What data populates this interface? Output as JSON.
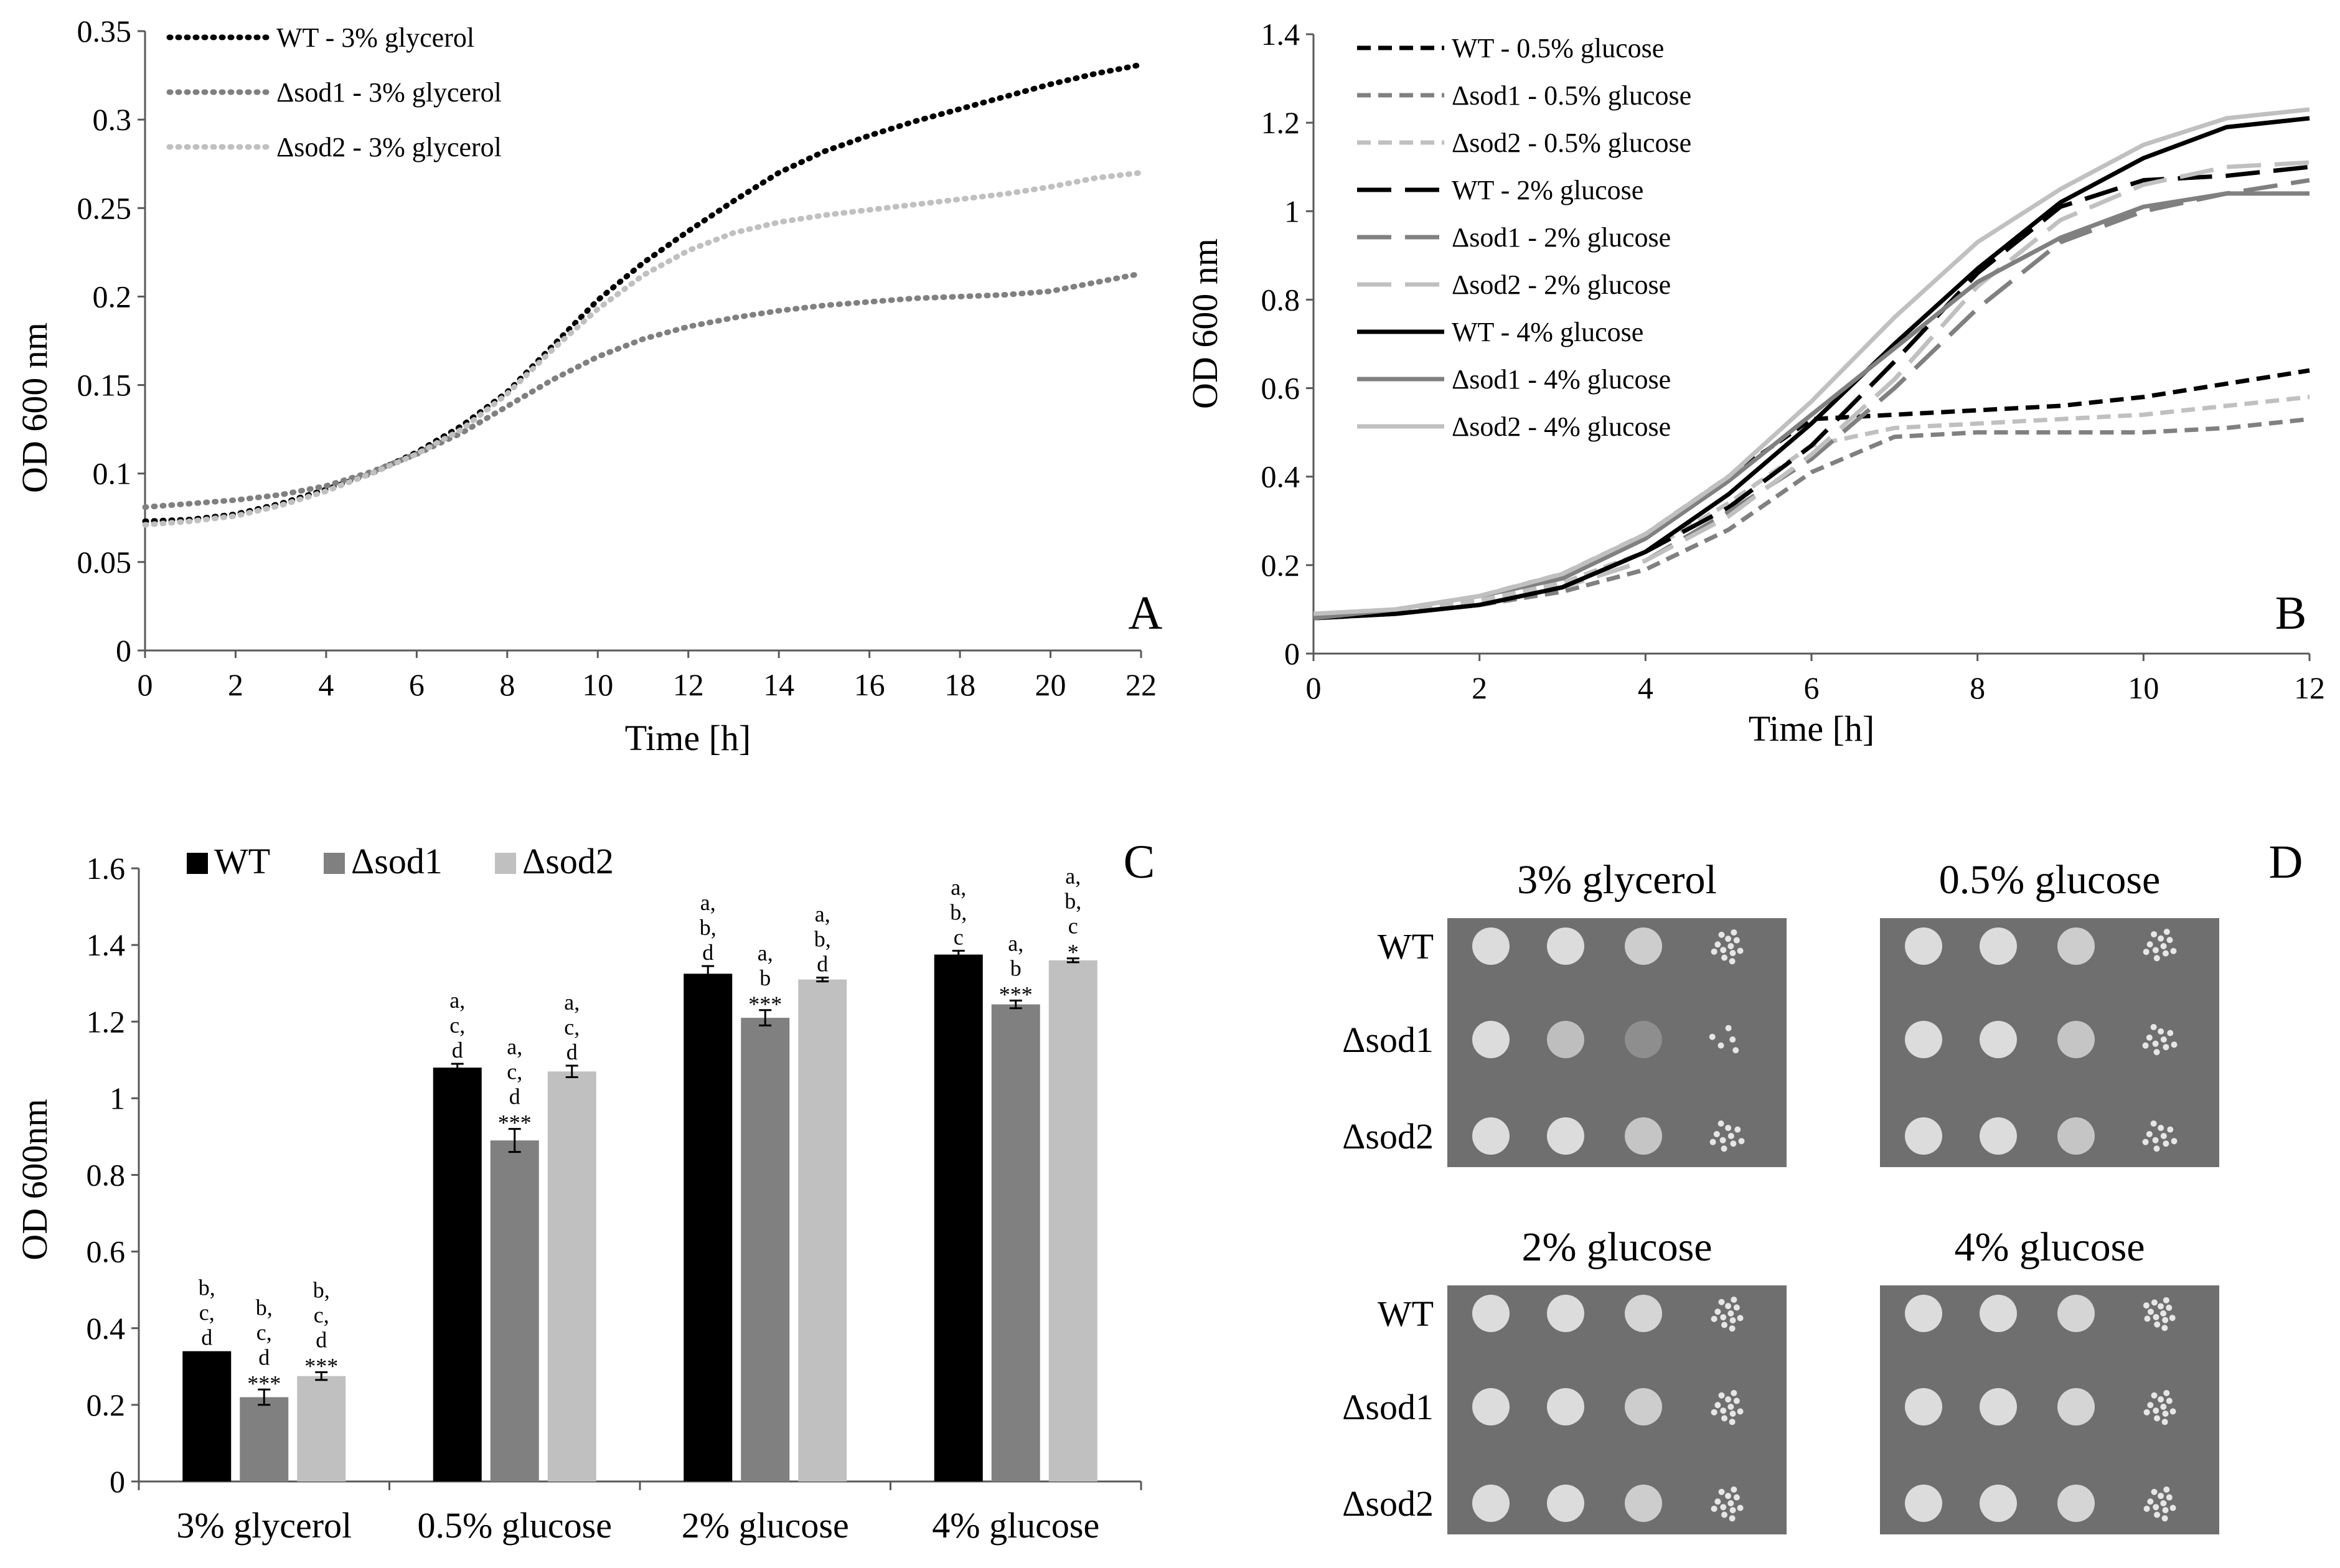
{
  "colors": {
    "black": "#000000",
    "dark_gray": "#808080",
    "light_gray": "#C0C0C0",
    "plate_bg": "#6f6f6f",
    "axis": "#595959"
  },
  "chart_data": [
    {
      "panel": "A",
      "type": "line",
      "xlabel": "Time [h]",
      "ylabel": "OD 600 nm",
      "xlim": [
        0,
        22
      ],
      "ylim": [
        0,
        0.35
      ],
      "xticks": [
        "0",
        "2",
        "4",
        "6",
        "8",
        "10",
        "12",
        "14",
        "16",
        "18",
        "20",
        "22"
      ],
      "yticks": [
        "0",
        "0.05",
        "0.1",
        "0.15",
        "0.2",
        "0.25",
        "0.3",
        "0.35"
      ],
      "legend_position": "top-left",
      "series": [
        {
          "name": "WT - 3% glycerol",
          "color": "#000000",
          "dash": "dot",
          "x": [
            0,
            1,
            2,
            3,
            4,
            5,
            6,
            7,
            8,
            9,
            10,
            11,
            12,
            13,
            14,
            15,
            16,
            17,
            18,
            19,
            20,
            21,
            22
          ],
          "y": [
            0.073,
            0.074,
            0.077,
            0.083,
            0.091,
            0.1,
            0.112,
            0.127,
            0.146,
            0.172,
            0.198,
            0.219,
            0.237,
            0.254,
            0.27,
            0.282,
            0.291,
            0.299,
            0.306,
            0.313,
            0.32,
            0.326,
            0.331
          ]
        },
        {
          "name": "Δsod1 - 3% glycerol",
          "color": "#808080",
          "dash": "dot",
          "x": [
            0,
            1,
            2,
            3,
            4,
            5,
            6,
            7,
            8,
            9,
            10,
            11,
            12,
            13,
            14,
            15,
            16,
            17,
            18,
            19,
            20,
            21,
            22
          ],
          "y": [
            0.081,
            0.083,
            0.085,
            0.088,
            0.093,
            0.101,
            0.111,
            0.123,
            0.138,
            0.153,
            0.166,
            0.176,
            0.183,
            0.188,
            0.192,
            0.195,
            0.197,
            0.199,
            0.2,
            0.201,
            0.203,
            0.208,
            0.213
          ]
        },
        {
          "name": "Δsod2 - 3% glycerol",
          "color": "#C0C0C0",
          "dash": "dot",
          "x": [
            0,
            1,
            2,
            3,
            4,
            5,
            6,
            7,
            8,
            9,
            10,
            11,
            12,
            13,
            14,
            15,
            16,
            17,
            18,
            19,
            20,
            21,
            22
          ],
          "y": [
            0.071,
            0.073,
            0.076,
            0.082,
            0.09,
            0.1,
            0.111,
            0.125,
            0.145,
            0.17,
            0.193,
            0.212,
            0.226,
            0.236,
            0.242,
            0.246,
            0.249,
            0.252,
            0.255,
            0.258,
            0.262,
            0.267,
            0.27
          ]
        }
      ],
      "panel_letter": "A"
    },
    {
      "panel": "B",
      "type": "line",
      "xlabel": "Time [h]",
      "ylabel": "OD 600 nm",
      "xlim": [
        0,
        12
      ],
      "ylim": [
        0,
        1.4
      ],
      "xticks": [
        "0",
        "2",
        "4",
        "6",
        "8",
        "10",
        "12"
      ],
      "yticks": [
        "0",
        "0.2",
        "0.4",
        "0.6",
        "0.8",
        "1",
        "1.2",
        "1.4"
      ],
      "legend_position": "top-left",
      "series": [
        {
          "name": "WT - 0.5% glucose",
          "color": "#000000",
          "dash": "short",
          "x": [
            0,
            1,
            2,
            3,
            4,
            5,
            6,
            7,
            8,
            9,
            10,
            11,
            12
          ],
          "y": [
            0.08,
            0.1,
            0.13,
            0.18,
            0.27,
            0.4,
            0.53,
            0.54,
            0.55,
            0.56,
            0.58,
            0.61,
            0.64
          ]
        },
        {
          "name": "Δsod1 - 0.5% glucose",
          "color": "#808080",
          "dash": "short",
          "x": [
            0,
            1,
            2,
            3,
            4,
            5,
            6,
            7,
            8,
            9,
            10,
            11,
            12
          ],
          "y": [
            0.08,
            0.09,
            0.11,
            0.14,
            0.19,
            0.28,
            0.41,
            0.49,
            0.5,
            0.5,
            0.5,
            0.51,
            0.53
          ]
        },
        {
          "name": "Δsod2 - 0.5% glucose",
          "color": "#C0C0C0",
          "dash": "short",
          "x": [
            0,
            1,
            2,
            3,
            4,
            5,
            6,
            7,
            8,
            9,
            10,
            11,
            12
          ],
          "y": [
            0.08,
            0.09,
            0.12,
            0.16,
            0.23,
            0.34,
            0.47,
            0.51,
            0.52,
            0.53,
            0.54,
            0.56,
            0.58
          ]
        },
        {
          "name": "WT - 2% glucose",
          "color": "#000000",
          "dash": "long",
          "x": [
            0,
            1,
            2,
            3,
            4,
            5,
            6,
            7,
            8,
            9,
            10,
            11,
            12
          ],
          "y": [
            0.08,
            0.09,
            0.11,
            0.15,
            0.23,
            0.33,
            0.47,
            0.66,
            0.86,
            1.01,
            1.07,
            1.08,
            1.1
          ]
        },
        {
          "name": "Δsod1 - 2% glucose",
          "color": "#808080",
          "dash": "long",
          "x": [
            0,
            1,
            2,
            3,
            4,
            5,
            6,
            7,
            8,
            9,
            10,
            11,
            12
          ],
          "y": [
            0.08,
            0.09,
            0.11,
            0.15,
            0.21,
            0.32,
            0.44,
            0.6,
            0.78,
            0.93,
            1.0,
            1.04,
            1.07
          ]
        },
        {
          "name": "Δsod2 - 2% glucose",
          "color": "#C0C0C0",
          "dash": "long",
          "x": [
            0,
            1,
            2,
            3,
            4,
            5,
            6,
            7,
            8,
            9,
            10,
            11,
            12
          ],
          "y": [
            0.08,
            0.09,
            0.11,
            0.15,
            0.21,
            0.31,
            0.45,
            0.62,
            0.83,
            0.98,
            1.06,
            1.1,
            1.11
          ]
        },
        {
          "name": "WT - 4% glucose",
          "color": "#000000",
          "dash": "solid",
          "x": [
            0,
            1,
            2,
            3,
            4,
            5,
            6,
            7,
            8,
            9,
            10,
            11,
            12
          ],
          "y": [
            0.08,
            0.09,
            0.11,
            0.15,
            0.23,
            0.36,
            0.52,
            0.7,
            0.87,
            1.02,
            1.12,
            1.19,
            1.21
          ]
        },
        {
          "name": "Δsod1 - 4% glucose",
          "color": "#808080",
          "dash": "solid",
          "x": [
            0,
            1,
            2,
            3,
            4,
            5,
            6,
            7,
            8,
            9,
            10,
            11,
            12
          ],
          "y": [
            0.08,
            0.1,
            0.13,
            0.17,
            0.26,
            0.39,
            0.54,
            0.69,
            0.84,
            0.94,
            1.01,
            1.04,
            1.04
          ]
        },
        {
          "name": "Δsod2 - 4% glucose",
          "color": "#C0C0C0",
          "dash": "solid",
          "x": [
            0,
            1,
            2,
            3,
            4,
            5,
            6,
            7,
            8,
            9,
            10,
            11,
            12
          ],
          "y": [
            0.09,
            0.1,
            0.13,
            0.18,
            0.27,
            0.4,
            0.57,
            0.76,
            0.93,
            1.05,
            1.15,
            1.21,
            1.23
          ]
        }
      ],
      "panel_letter": "B"
    },
    {
      "panel": "C",
      "type": "bar",
      "ylabel": "OD 600nm",
      "ylim": [
        0,
        1.6
      ],
      "yticks": [
        "0",
        "0.2",
        "0.4",
        "0.6",
        "0.8",
        "1",
        "1.2",
        "1.4",
        "1.6"
      ],
      "categories": [
        "3% glycerol",
        "0.5% glucose",
        "2% glucose",
        "4% glucose"
      ],
      "legend_position": "top-left",
      "series": [
        {
          "name": "WT",
          "color": "#000000",
          "values": [
            0.34,
            1.08,
            1.325,
            1.375
          ],
          "errors": [
            0.0,
            0.01,
            0.02,
            0.01
          ],
          "labels": [
            [
              "b,",
              "c,",
              "d"
            ],
            [
              "a,",
              "c,",
              "d"
            ],
            [
              "a,",
              "b,",
              "d"
            ],
            [
              "a,",
              "b,",
              "c"
            ]
          ],
          "stars": [
            "",
            "",
            "",
            ""
          ]
        },
        {
          "name": "Δsod1",
          "color": "#808080",
          "values": [
            0.22,
            0.89,
            1.21,
            1.245
          ],
          "errors": [
            0.02,
            0.03,
            0.02,
            0.01
          ],
          "labels": [
            [
              "b,",
              "c,",
              "d"
            ],
            [
              "a,",
              "c,",
              "d"
            ],
            [
              "a,",
              "b"
            ],
            [
              "a,",
              "b"
            ]
          ],
          "stars": [
            "***",
            "***",
            "***",
            "***"
          ]
        },
        {
          "name": "Δsod2",
          "color": "#C0C0C0",
          "values": [
            0.275,
            1.07,
            1.31,
            1.36
          ],
          "errors": [
            0.01,
            0.015,
            0.005,
            0.005
          ],
          "labels": [
            [
              "b,",
              "c,",
              "d"
            ],
            [
              "a,",
              "c,",
              "d"
            ],
            [
              "a,",
              "b,",
              "d"
            ],
            [
              "a,",
              "b,",
              "c"
            ]
          ],
          "stars": [
            "***",
            "",
            "",
            "*"
          ]
        }
      ],
      "panel_letter": "C"
    }
  ],
  "spot_panel": {
    "letter": "D",
    "row_labels": [
      "WT",
      "Δsod1",
      "Δsod2"
    ],
    "plates": [
      {
        "title": "3% glycerol",
        "growth": [
          [
            1,
            1,
            0.9,
            0.6
          ],
          [
            1,
            0.8,
            0.4,
            0.1
          ],
          [
            1,
            1,
            0.85,
            0.4
          ]
        ]
      },
      {
        "title": "0.5% glucose",
        "growth": [
          [
            1,
            1,
            0.9,
            0.5
          ],
          [
            1,
            1,
            0.85,
            0.45
          ],
          [
            1,
            1,
            0.85,
            0.4
          ]
        ]
      },
      {
        "title": "2% glucose",
        "growth": [
          [
            1,
            1,
            0.95,
            0.6
          ],
          [
            1,
            1,
            0.9,
            0.55
          ],
          [
            1,
            1,
            0.9,
            0.55
          ]
        ]
      },
      {
        "title": "4% glucose",
        "growth": [
          [
            1,
            1,
            0.95,
            0.65
          ],
          [
            1,
            1,
            0.95,
            0.6
          ],
          [
            1,
            1,
            0.95,
            0.6
          ]
        ]
      }
    ]
  }
}
